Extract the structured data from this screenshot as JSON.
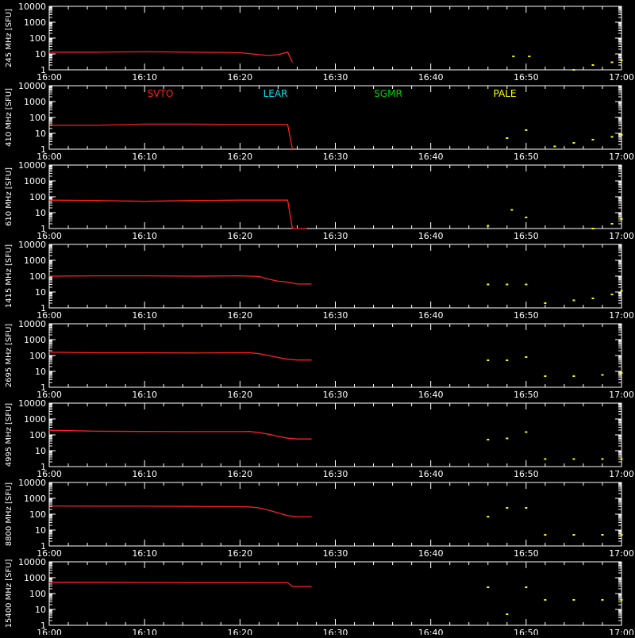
{
  "colors": {
    "background": "#000000",
    "axes": "#ffffff",
    "SVTO": "#ff2020",
    "LEAR": "#00e5ee",
    "SGMR": "#00d000",
    "PALE": "#ffff00"
  },
  "legend": [
    "SVTO",
    "LEAR",
    "SGMR",
    "PALE"
  ],
  "chart_data": [
    {
      "type": "line",
      "ylabel": "245 MHz [SFU]",
      "x_ticks": [
        "16:00",
        "16:10",
        "16:20",
        "16:30",
        "16:40",
        "16:50",
        "17:00"
      ],
      "y_ticks": [
        "1",
        "10",
        "100",
        "1000",
        "10000"
      ],
      "xlim": [
        "16:00",
        "17:00"
      ],
      "ylim": [
        1,
        10000
      ],
      "y_scale": "log",
      "series": [
        {
          "name": "SVTO",
          "x": [
            "16:00",
            "16:05",
            "16:10",
            "16:15",
            "16:20",
            "16:22",
            "16:23",
            "16:24",
            "16:25",
            "16:25:30"
          ],
          "y": [
            13,
            13,
            14,
            13,
            12,
            9,
            8,
            9,
            13,
            3
          ]
        },
        {
          "name": "PALE",
          "x": [
            "16:48:40",
            "16:50:20",
            "16:55",
            "16:57",
            "16:59",
            "17:00"
          ],
          "y": [
            7,
            7,
            1,
            2,
            3,
            4
          ]
        }
      ]
    },
    {
      "type": "line",
      "ylabel": "410 MHz [SFU]",
      "x_ticks": [
        "16:00",
        "16:10",
        "16:20",
        "16:30",
        "16:40",
        "16:50",
        "17:00"
      ],
      "y_ticks": [
        "1",
        "10",
        "100",
        "1000",
        "10000"
      ],
      "xlim": [
        "16:00",
        "17:00"
      ],
      "ylim": [
        1,
        10000
      ],
      "y_scale": "log",
      "series": [
        {
          "name": "SVTO",
          "x": [
            "16:00",
            "16:05",
            "16:10",
            "16:15",
            "16:20",
            "16:25",
            "16:25:30"
          ],
          "y": [
            32,
            32,
            38,
            38,
            36,
            36,
            1
          ]
        },
        {
          "name": "PALE",
          "x": [
            "16:48",
            "16:50",
            "16:53",
            "16:55",
            "16:57",
            "16:59",
            "17:00"
          ],
          "y": [
            5,
            16,
            1.5,
            2.5,
            4,
            6,
            8
          ]
        }
      ]
    },
    {
      "type": "line",
      "ylabel": "610 MHz [SFU]",
      "x_ticks": [
        "16:00",
        "16:10",
        "16:20",
        "16:30",
        "16:40",
        "16:50",
        "17:00"
      ],
      "y_ticks": [
        "1",
        "10",
        "100",
        "1000",
        "10000"
      ],
      "xlim": [
        "16:00",
        "17:00"
      ],
      "ylim": [
        1,
        10000
      ],
      "y_scale": "log",
      "series": [
        {
          "name": "SVTO",
          "x": [
            "16:00",
            "16:05",
            "16:10",
            "16:15",
            "16:20",
            "16:25",
            "16:25:30",
            "16:27"
          ],
          "y": [
            62,
            58,
            52,
            58,
            62,
            62,
            1,
            1
          ]
        },
        {
          "name": "PALE",
          "x": [
            "16:46",
            "16:48:30",
            "16:50",
            "16:57",
            "16:59",
            "17:00"
          ],
          "y": [
            1.5,
            15,
            5,
            1,
            2,
            4
          ]
        }
      ]
    },
    {
      "type": "line",
      "ylabel": "1415 MHz [SFU]",
      "x_ticks": [
        "16:00",
        "16:10",
        "16:20",
        "16:30",
        "16:40",
        "16:50",
        "17:00"
      ],
      "y_ticks": [
        "1",
        "10",
        "100",
        "1000",
        "10000"
      ],
      "xlim": [
        "16:00",
        "17:00"
      ],
      "ylim": [
        1,
        10000
      ],
      "y_scale": "log",
      "series": [
        {
          "name": "SVTO",
          "x": [
            "16:00",
            "16:05",
            "16:10",
            "16:15",
            "16:20",
            "16:22",
            "16:23",
            "16:24",
            "16:25",
            "16:26",
            "16:27:30"
          ],
          "y": [
            100,
            105,
            105,
            100,
            105,
            95,
            65,
            48,
            42,
            32,
            32
          ]
        },
        {
          "name": "PALE",
          "x": [
            "16:46",
            "16:48",
            "16:50",
            "16:52",
            "16:55",
            "16:57",
            "16:59",
            "17:00"
          ],
          "y": [
            30,
            30,
            30,
            2,
            3,
            4,
            7,
            12
          ]
        }
      ]
    },
    {
      "type": "line",
      "ylabel": "2695 MHz [SFU]",
      "x_ticks": [
        "16:00",
        "16:10",
        "16:20",
        "16:30",
        "16:40",
        "16:50",
        "17:00"
      ],
      "y_ticks": [
        "1",
        "10",
        "100",
        "1000",
        "10000"
      ],
      "xlim": [
        "16:00",
        "17:00"
      ],
      "ylim": [
        1,
        10000
      ],
      "y_scale": "log",
      "series": [
        {
          "name": "SVTO",
          "x": [
            "16:00",
            "16:05",
            "16:10",
            "16:15",
            "16:20",
            "16:21",
            "16:22",
            "16:23",
            "16:24",
            "16:25",
            "16:26",
            "16:27:30"
          ],
          "y": [
            160,
            150,
            150,
            145,
            150,
            150,
            130,
            100,
            75,
            58,
            52,
            52
          ]
        },
        {
          "name": "PALE",
          "x": [
            "16:46",
            "16:48",
            "16:50",
            "16:52",
            "16:55",
            "16:58",
            "17:00"
          ],
          "y": [
            50,
            50,
            80,
            5,
            5,
            6,
            8
          ]
        }
      ]
    },
    {
      "type": "line",
      "ylabel": "4995 MHz [SFU]",
      "x_ticks": [
        "16:00",
        "16:10",
        "16:20",
        "16:30",
        "16:40",
        "16:50",
        "17:00"
      ],
      "y_ticks": [
        "1",
        "10",
        "100",
        "1000",
        "10000"
      ],
      "xlim": [
        "16:00",
        "17:00"
      ],
      "ylim": [
        1,
        10000
      ],
      "y_scale": "log",
      "series": [
        {
          "name": "SVTO",
          "x": [
            "16:00",
            "16:02",
            "16:05",
            "16:10",
            "16:15",
            "16:20",
            "16:21",
            "16:22",
            "16:23",
            "16:24",
            "16:25",
            "16:26",
            "16:27:30"
          ],
          "y": [
            195,
            185,
            170,
            165,
            160,
            160,
            165,
            140,
            110,
            80,
            62,
            55,
            55
          ]
        },
        {
          "name": "PALE",
          "x": [
            "16:46",
            "16:48",
            "16:50",
            "16:52",
            "16:55",
            "16:58",
            "17:00"
          ],
          "y": [
            50,
            60,
            150,
            3,
            3,
            3,
            3
          ]
        }
      ]
    },
    {
      "type": "line",
      "ylabel": "8800 MHz [SFU]",
      "x_ticks": [
        "16:00",
        "16:10",
        "16:20",
        "16:30",
        "16:40",
        "16:50",
        "17:00"
      ],
      "y_ticks": [
        "1",
        "10",
        "100",
        "1000",
        "10000"
      ],
      "xlim": [
        "16:00",
        "17:00"
      ],
      "ylim": [
        1,
        10000
      ],
      "y_scale": "log",
      "series": [
        {
          "name": "SVTO",
          "x": [
            "16:00",
            "16:05",
            "16:10",
            "16:15",
            "16:20",
            "16:21",
            "16:22",
            "16:23",
            "16:24",
            "16:25",
            "16:26",
            "16:27:30"
          ],
          "y": [
            330,
            320,
            320,
            310,
            300,
            290,
            250,
            180,
            120,
            80,
            70,
            70
          ]
        },
        {
          "name": "PALE",
          "x": [
            "16:46",
            "16:48",
            "16:50",
            "16:52",
            "16:55",
            "16:58",
            "17:00"
          ],
          "y": [
            70,
            250,
            250,
            5,
            5,
            5,
            5
          ]
        }
      ]
    },
    {
      "type": "line",
      "ylabel": "15400 MHz [SFU]",
      "x_ticks": [
        "16:00",
        "16:10",
        "16:20",
        "16:30",
        "16:40",
        "16:50",
        "17:00"
      ],
      "y_ticks": [
        "1",
        "10",
        "100",
        "1000",
        "10000"
      ],
      "xlim": [
        "16:00",
        "17:00"
      ],
      "ylim": [
        1,
        10000
      ],
      "y_scale": "log",
      "series": [
        {
          "name": "SVTO",
          "x": [
            "16:00",
            "16:05",
            "16:10",
            "16:15",
            "16:20",
            "16:25",
            "16:25:30",
            "16:27:30"
          ],
          "y": [
            520,
            510,
            500,
            490,
            490,
            480,
            280,
            280
          ]
        },
        {
          "name": "PALE",
          "x": [
            "16:46",
            "16:48",
            "16:50",
            "16:52",
            "16:55",
            "16:58",
            "17:00"
          ],
          "y": [
            250,
            5,
            250,
            40,
            40,
            40,
            40
          ]
        }
      ]
    }
  ]
}
